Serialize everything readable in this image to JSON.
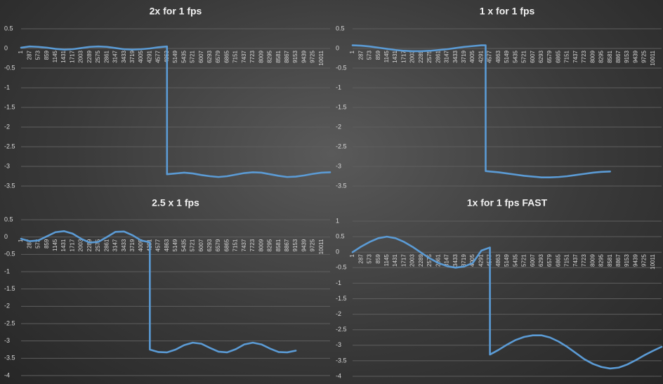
{
  "chart_data": [
    {
      "type": "line",
      "title": "2x for 1 fps",
      "grid": true,
      "ylim": [
        -3.5,
        0.5
      ],
      "yticks": [
        -3.5,
        -3,
        -2.5,
        -2,
        -1.5,
        -1,
        -0.5,
        0,
        0.5
      ],
      "xlim": [
        1,
        10297
      ],
      "xticks": [
        1,
        287,
        573,
        859,
        1145,
        1431,
        1717,
        2003,
        2289,
        2575,
        2861,
        3147,
        3433,
        3719,
        4005,
        4291,
        4577,
        4863,
        5149,
        5435,
        5721,
        6007,
        6293,
        6579,
        6865,
        7151,
        7437,
        7723,
        8009,
        8295,
        8581,
        8867,
        9153,
        9439,
        9725,
        10011
      ],
      "x": [
        1,
        287,
        573,
        859,
        1145,
        1431,
        1717,
        2003,
        2289,
        2575,
        2861,
        3147,
        3433,
        3719,
        4005,
        4291,
        4577,
        4863,
        4864,
        5149,
        5435,
        5721,
        6007,
        6293,
        6579,
        6865,
        7151,
        7437,
        7723,
        8009,
        8295,
        8581,
        8867,
        9153,
        9439,
        9725,
        10011,
        10297
      ],
      "series": [
        {
          "color": "#5b9bd5",
          "values": [
            0.02,
            0.05,
            0.04,
            0.02,
            -0.01,
            -0.03,
            -0.02,
            0.01,
            0.04,
            0.05,
            0.04,
            0.01,
            -0.02,
            -0.03,
            -0.02,
            0.0,
            0.03,
            0.05,
            -3.2,
            -3.18,
            -3.16,
            -3.18,
            -3.22,
            -3.25,
            -3.27,
            -3.25,
            -3.21,
            -3.17,
            -3.15,
            -3.16,
            -3.2,
            -3.24,
            -3.27,
            -3.26,
            -3.23,
            -3.19,
            -3.16,
            -3.15
          ]
        }
      ]
    },
    {
      "type": "line",
      "title": "1 x for 1 fps",
      "grid": true,
      "ylim": [
        -3.5,
        0.5
      ],
      "yticks": [
        -3.5,
        -3,
        -2.5,
        -2,
        -1.5,
        -1,
        -0.5,
        0,
        0.5
      ],
      "xlim": [
        1,
        10297
      ],
      "xticks": [
        1,
        287,
        573,
        859,
        1145,
        1431,
        1717,
        2003,
        2289,
        2575,
        2861,
        3147,
        3433,
        3719,
        4005,
        4291,
        4577,
        4863,
        5149,
        5435,
        5721,
        6007,
        6293,
        6579,
        6865,
        7151,
        7437,
        7723,
        8009,
        8295,
        8581,
        8867,
        9153,
        9439,
        9725,
        10011
      ],
      "x": [
        1,
        287,
        573,
        859,
        1145,
        1431,
        1717,
        2003,
        2289,
        2575,
        2861,
        3147,
        3433,
        3719,
        4005,
        4291,
        4434,
        4435,
        4577,
        4863,
        5149,
        5435,
        5721,
        6007,
        6293,
        6579,
        6865,
        7151,
        7437,
        7723,
        8009,
        8295,
        8581
      ],
      "series": [
        {
          "color": "#5b9bd5",
          "values": [
            0.08,
            0.07,
            0.05,
            0.02,
            -0.01,
            -0.04,
            -0.06,
            -0.07,
            -0.07,
            -0.06,
            -0.04,
            -0.02,
            0.01,
            0.04,
            0.06,
            0.08,
            0.08,
            -3.12,
            -3.13,
            -3.15,
            -3.18,
            -3.21,
            -3.24,
            -3.26,
            -3.28,
            -3.28,
            -3.27,
            -3.25,
            -3.22,
            -3.19,
            -3.16,
            -3.14,
            -3.13
          ]
        }
      ]
    },
    {
      "type": "line",
      "title": "2.5 x 1 fps",
      "grid": true,
      "ylim": [
        -4,
        0.5
      ],
      "yticks": [
        -4,
        -3.5,
        -3,
        -2.5,
        -2,
        -1.5,
        -1,
        -0.5,
        0,
        0.5
      ],
      "xlim": [
        1,
        10297
      ],
      "xticks": [
        1,
        287,
        573,
        859,
        1145,
        1431,
        1717,
        2003,
        2289,
        2575,
        2861,
        3147,
        3433,
        3719,
        4005,
        4291,
        4577,
        4863,
        5149,
        5435,
        5721,
        6007,
        6293,
        6579,
        6865,
        7151,
        7437,
        7723,
        8009,
        8295,
        8581,
        8867,
        9153,
        9439,
        9725,
        10011
      ],
      "x": [
        1,
        287,
        573,
        859,
        1145,
        1431,
        1717,
        2003,
        2289,
        2575,
        2861,
        3147,
        3433,
        3719,
        4005,
        4291,
        4292,
        4577,
        4863,
        5149,
        5435,
        5721,
        6007,
        6293,
        6579,
        6865,
        7151,
        7437,
        7723,
        8009,
        8295,
        8581,
        8867,
        9153
      ],
      "series": [
        {
          "color": "#5b9bd5",
          "values": [
            -0.05,
            -0.12,
            -0.1,
            0.02,
            0.14,
            0.17,
            0.1,
            -0.05,
            -0.16,
            -0.14,
            0.0,
            0.15,
            0.16,
            0.05,
            -0.1,
            -0.15,
            -3.25,
            -3.32,
            -3.33,
            -3.25,
            -3.12,
            -3.05,
            -3.08,
            -3.2,
            -3.31,
            -3.33,
            -3.24,
            -3.1,
            -3.05,
            -3.1,
            -3.22,
            -3.32,
            -3.33,
            -3.28
          ]
        }
      ]
    },
    {
      "type": "line",
      "title": "1x for 1 fps  FAST",
      "grid": true,
      "ylim": [
        -4,
        1
      ],
      "yticks": [
        -4,
        -3.5,
        -3,
        -2.5,
        -2,
        -1.5,
        -1,
        -0.5,
        0,
        0.5,
        1
      ],
      "xlim": [
        1,
        10297
      ],
      "xticks": [
        1,
        287,
        573,
        859,
        1145,
        1431,
        1717,
        2003,
        2289,
        2575,
        2861,
        3147,
        3433,
        3719,
        4005,
        4291,
        4577,
        4863,
        5149,
        5435,
        5721,
        6007,
        6293,
        6579,
        6865,
        7151,
        7437,
        7723,
        8009,
        8295,
        8581,
        8867,
        9153,
        9439,
        9725,
        10011
      ],
      "x": [
        1,
        287,
        573,
        859,
        1145,
        1431,
        1717,
        2003,
        2289,
        2575,
        2861,
        3147,
        3433,
        3719,
        4005,
        4291,
        4577,
        4578,
        4863,
        5149,
        5435,
        5721,
        6007,
        6293,
        6579,
        6865,
        7151,
        7437,
        7723,
        8009,
        8295,
        8581,
        8867,
        9153,
        9439,
        9725,
        10011,
        10297
      ],
      "series": [
        {
          "color": "#5b9bd5",
          "values": [
            0.0,
            0.18,
            0.33,
            0.45,
            0.5,
            0.45,
            0.33,
            0.17,
            -0.02,
            -0.2,
            -0.35,
            -0.45,
            -0.5,
            -0.46,
            -0.35,
            0.05,
            0.15,
            -3.3,
            -3.15,
            -2.98,
            -2.83,
            -2.73,
            -2.68,
            -2.68,
            -2.75,
            -2.88,
            -3.05,
            -3.25,
            -3.45,
            -3.6,
            -3.7,
            -3.75,
            -3.72,
            -3.62,
            -3.48,
            -3.32,
            -3.18,
            -3.05
          ]
        }
      ]
    }
  ]
}
